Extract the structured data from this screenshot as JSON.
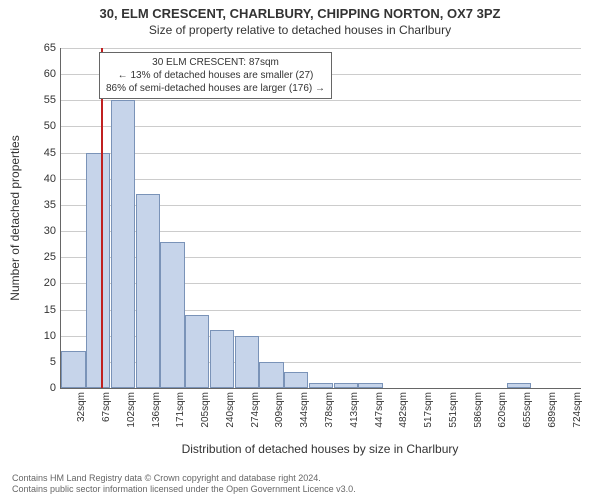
{
  "title": "30, ELM CRESCENT, CHARLBURY, CHIPPING NORTON, OX7 3PZ",
  "subtitle": "Size of property relative to detached houses in Charlbury",
  "ylabel": "Number of detached properties",
  "xlabel": "Distribution of detached houses by size in Charlbury",
  "chart": {
    "type": "histogram",
    "ylim": [
      0,
      65
    ],
    "ytick_step": 5,
    "xticks": [
      "32sqm",
      "67sqm",
      "102sqm",
      "136sqm",
      "171sqm",
      "205sqm",
      "240sqm",
      "274sqm",
      "309sqm",
      "344sqm",
      "378sqm",
      "413sqm",
      "447sqm",
      "482sqm",
      "517sqm",
      "551sqm",
      "586sqm",
      "620sqm",
      "655sqm",
      "689sqm",
      "724sqm"
    ],
    "values": [
      7,
      45,
      55,
      37,
      28,
      14,
      11,
      10,
      5,
      3,
      1,
      1,
      1,
      0,
      0,
      0,
      0,
      0,
      1,
      0,
      0
    ],
    "bar_fill": "#c6d4ea",
    "bar_stroke": "#7a93b8",
    "grid_color": "#cccccc",
    "background_color": "#ffffff",
    "axis_color": "#666666",
    "marker_index": 1.6,
    "marker_color": "#c02020"
  },
  "annotation": {
    "line1": "30 ELM CRESCENT: 87sqm",
    "line2": "← 13% of detached houses are smaller (27)",
    "line3": "86% of semi-detached houses are larger (176) →"
  },
  "footer": {
    "line1": "Contains HM Land Registry data © Crown copyright and database right 2024.",
    "line2": "Contains public sector information licensed under the Open Government Licence v3.0."
  }
}
